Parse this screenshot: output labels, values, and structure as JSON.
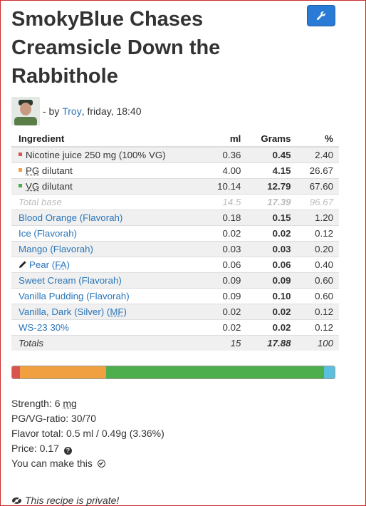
{
  "recipe": {
    "title": "SmokyBlue Chases Creamsicle Down the Rabbithole",
    "author_prefix": "- by",
    "author_name": "Troy",
    "author_suffix": ", friday, 18:40"
  },
  "table": {
    "headers": {
      "ingredient": "Ingredient",
      "ml": "ml",
      "grams": "Grams",
      "pct": "%"
    },
    "base_rows": [
      {
        "label": "Nicotine juice 250 mg (100% VG)",
        "ml": "0.36",
        "grams": "0.45",
        "pct": "2.40",
        "color": "#d9534f"
      },
      {
        "pre": "",
        "abbr": "PG",
        "label": " dilutant",
        "ml": "4.00",
        "grams": "4.15",
        "pct": "26.67",
        "color": "#f0a040"
      },
      {
        "pre": "",
        "abbr": "VG",
        "label": " dilutant",
        "ml": "10.14",
        "grams": "12.79",
        "pct": "67.60",
        "color": "#4cae4c"
      }
    ],
    "total_base": {
      "label": "Total base",
      "ml": "14.5",
      "grams": "17.39",
      "pct": "96.67"
    },
    "flavors": [
      {
        "name": "Blood Orange (Flavorah)",
        "ml": "0.18",
        "grams": "0.15",
        "pct": "1.20"
      },
      {
        "name": "Ice (Flavorah)",
        "ml": "0.02",
        "grams": "0.02",
        "pct": "0.12"
      },
      {
        "name": "Mango (Flavorah)",
        "ml": "0.03",
        "grams": "0.03",
        "pct": "0.20"
      },
      {
        "name": "Pear (",
        "abbr": "FA",
        "suffix": ")",
        "ml": "0.06",
        "grams": "0.06",
        "pct": "0.40",
        "icon": "pencil-icon"
      },
      {
        "name": "Sweet Cream (Flavorah)",
        "ml": "0.09",
        "grams": "0.09",
        "pct": "0.60"
      },
      {
        "name": "Vanilla Pudding (Flavorah)",
        "ml": "0.09",
        "grams": "0.10",
        "pct": "0.60"
      },
      {
        "name": "Vanilla, Dark (Silver) (",
        "abbr": "MF",
        "suffix": ")",
        "ml": "0.02",
        "grams": "0.02",
        "pct": "0.12"
      },
      {
        "name": "WS-23 30%",
        "ml": "0.02",
        "grams": "0.02",
        "pct": "0.12"
      }
    ],
    "totals": {
      "label": "Totals",
      "ml": "15",
      "grams": "17.88",
      "pct": "100"
    }
  },
  "composition_bar": [
    {
      "name": "nicotine",
      "percent": 2.4,
      "color": "#d9534f"
    },
    {
      "name": "pg",
      "percent": 26.67,
      "color": "#f0a040"
    },
    {
      "name": "vg",
      "percent": 67.6,
      "color": "#4cae4c"
    },
    {
      "name": "flavor",
      "percent": 3.36,
      "color": "#5bc0de"
    }
  ],
  "info": {
    "strength_label": "Strength: 6 ",
    "strength_unit": "mg",
    "pgvg": "PG/VG-ratio: 30/70",
    "flavor_total": "Flavor total: 0.5 ml / 0.49g (3.36%)",
    "price": "Price: 0.17",
    "can_make": "You can make this"
  },
  "private_text": "This recipe is private!",
  "icons": {
    "tools": "wrench-icon",
    "help": "question-circle-icon",
    "ok": "check-circle-icon",
    "private": "eye-slash-icon",
    "edit": "pencil-icon"
  }
}
